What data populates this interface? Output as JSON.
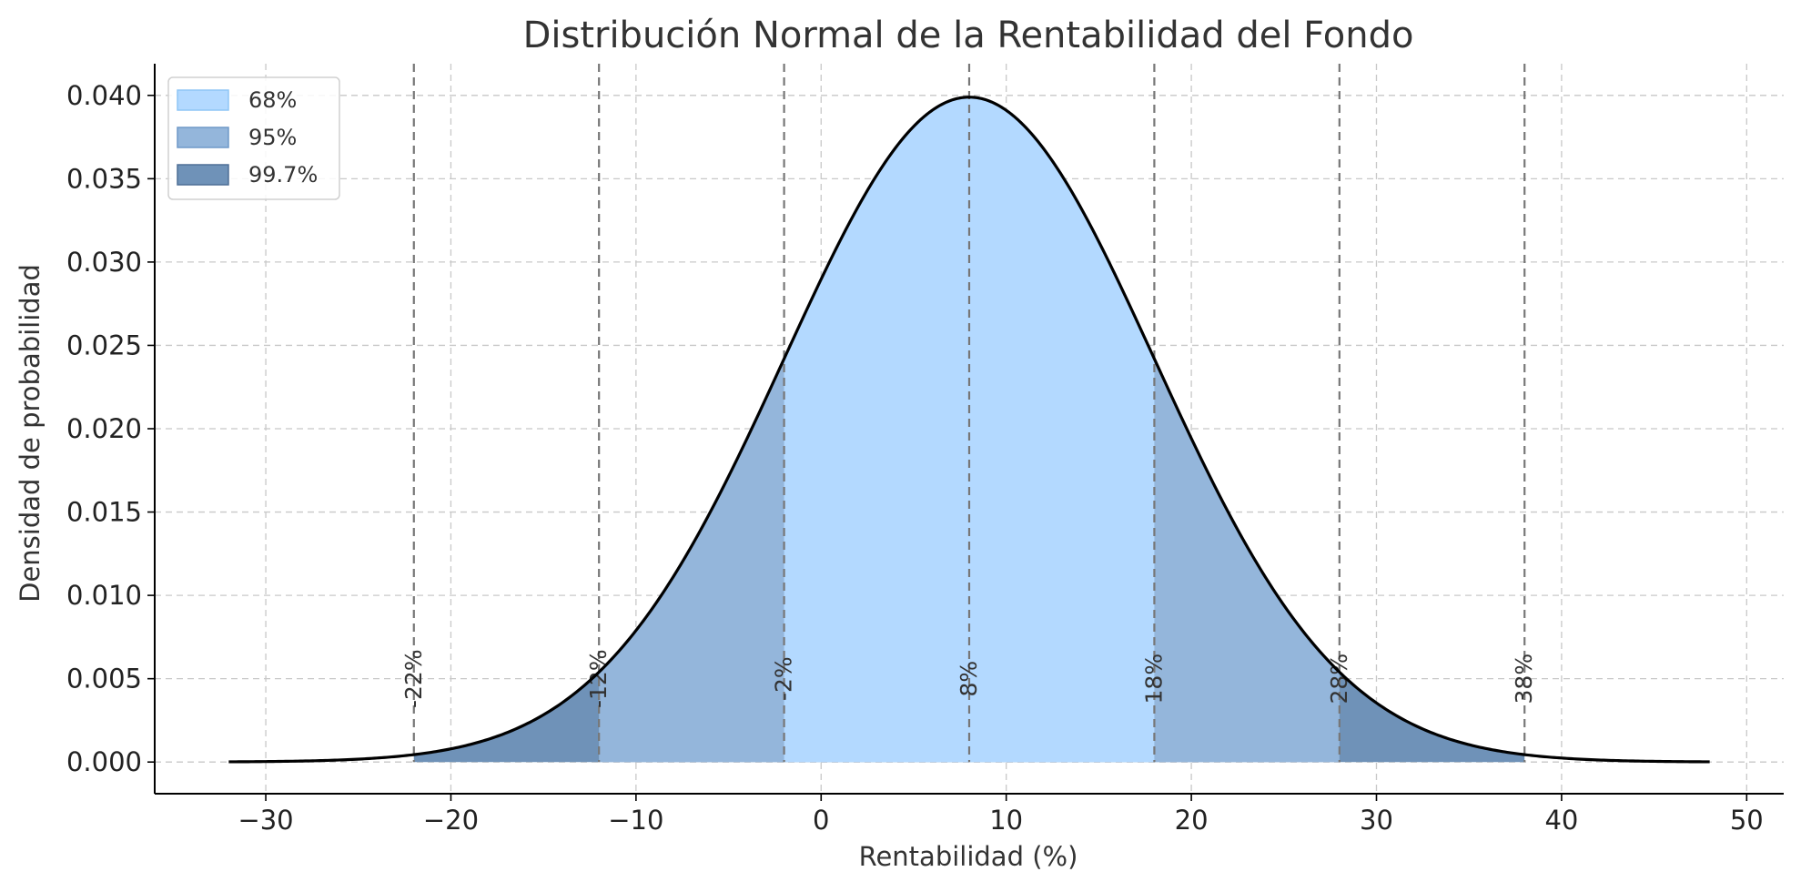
{
  "chart_data": {
    "type": "area",
    "title": "Distribución Normal de la Rentabilidad del Fondo",
    "xlabel": "Rentabilidad (%)",
    "ylabel": "Densidad de probabilidad",
    "xlim": [
      -36,
      52
    ],
    "ylim": [
      -0.0019,
      0.0419
    ],
    "x_ticks": [
      -30,
      -20,
      -10,
      0,
      10,
      20,
      30,
      40,
      50
    ],
    "x_tick_labels": [
      "−30",
      "−20",
      "−10",
      "0",
      "10",
      "20",
      "30",
      "40",
      "50"
    ],
    "y_ticks": [
      0.0,
      0.005,
      0.01,
      0.015,
      0.02,
      0.025,
      0.03,
      0.035,
      0.04
    ],
    "y_tick_labels": [
      "0.000",
      "0.005",
      "0.010",
      "0.015",
      "0.020",
      "0.025",
      "0.030",
      "0.035",
      "0.040"
    ],
    "grid": true,
    "distribution": {
      "mean": 8,
      "std": 10,
      "x_range": [
        -32,
        48
      ]
    },
    "bands": [
      {
        "label": "68%",
        "range": [
          -2,
          18
        ],
        "color": "#b3d9ff"
      },
      {
        "label": "95%",
        "range": [
          -12,
          28
        ],
        "color": "#94b6db"
      },
      {
        "label": "99.7%",
        "range": [
          -22,
          38
        ],
        "color": "#6f92b8"
      }
    ],
    "vlines": [
      {
        "x": -22,
        "label": "-22%"
      },
      {
        "x": -12,
        "label": "-12%"
      },
      {
        "x": -2,
        "label": "-2%"
      },
      {
        "x": 8,
        "label": "8%"
      },
      {
        "x": 18,
        "label": "18%"
      },
      {
        "x": 28,
        "label": "28%"
      },
      {
        "x": 38,
        "label": "38%"
      }
    ],
    "legend": {
      "position": "top-left",
      "entries": [
        {
          "label": "68%",
          "color": "#b3d9ff",
          "edge": "#8fc6f5"
        },
        {
          "label": "95%",
          "color": "#94b6db",
          "edge": "#6f98c8"
        },
        {
          "label": "99.7%",
          "color": "#6f92b8",
          "edge": "#4f6f96"
        }
      ]
    },
    "line_color": "#000000",
    "vline_color": "#777777",
    "grid_color": "#c8c8c8"
  }
}
